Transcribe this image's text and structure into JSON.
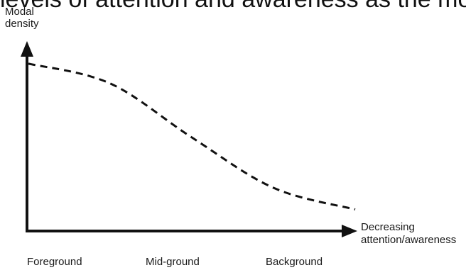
{
  "page": {
    "top_text": "levels of attention and awareness as the modal density"
  },
  "chart_data": {
    "type": "line",
    "title": "",
    "ylabel_lines": [
      "Modal",
      "density"
    ],
    "xlabel_lines": [
      "Decreasing",
      "attention/awareness"
    ],
    "categories": [
      "Foreground",
      "Mid-ground",
      "Background"
    ],
    "series": [
      {
        "style": "dashed",
        "color": "#111111",
        "x": [
          0,
          0.25,
          0.5,
          0.75,
          1.0
        ],
        "y": [
          0.93,
          0.82,
          0.52,
          0.24,
          0.12
        ]
      }
    ],
    "ylim": [
      0,
      1
    ],
    "xlim": [
      0,
      1
    ],
    "grid": false
  },
  "colors": {
    "axis": "#111111",
    "curve": "#111111"
  }
}
